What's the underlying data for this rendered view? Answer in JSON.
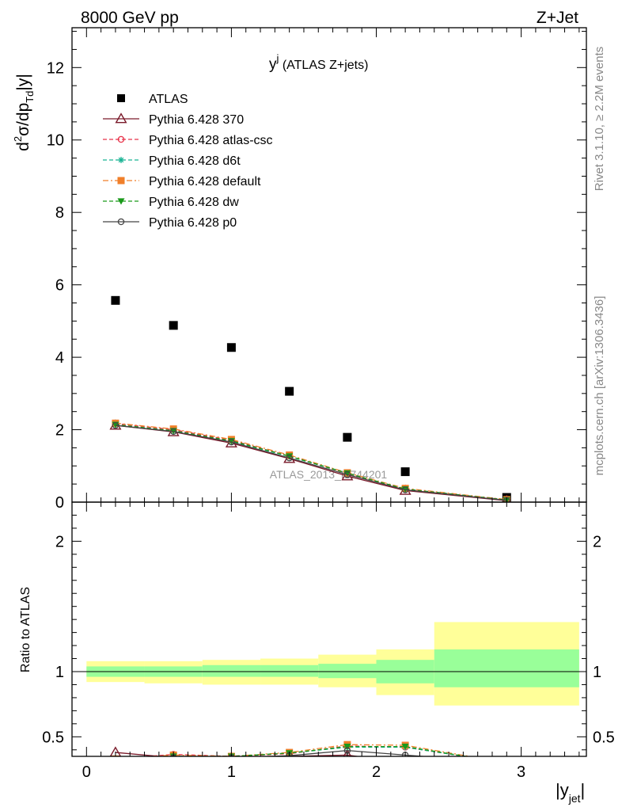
{
  "header": {
    "left_label": "8000 GeV pp",
    "right_label": "Z+Jet"
  },
  "side_labels": {
    "rivet": "Rivet 3.1.10, ≥ 2.2M events",
    "mcplots": "mcplots.cern.ch [arXiv:1306.3436]"
  },
  "watermark": "ATLAS_2013_I1744201",
  "chart_data": [
    {
      "type": "scatter",
      "panel": "main",
      "title_main": "y",
      "title_sup": "j",
      "title_rest": " (ATLAS Z+jets)",
      "ylabel": "d²σ/dp_Td|y|",
      "ylabel_parts": {
        "pre": "d",
        "sup": "2",
        "mid": "σ/dp",
        "sub": "Td",
        "post": "|y|"
      },
      "xlim": [
        -0.1,
        3.45
      ],
      "ylim": [
        0,
        13.1
      ],
      "yticks": [
        0,
        2,
        4,
        6,
        8,
        10,
        12
      ],
      "ytick_labels": [
        "0",
        "2",
        "4",
        "6",
        "8",
        "10",
        "12"
      ],
      "legend_position": "top-left",
      "x": [
        0.2,
        0.6,
        1.0,
        1.4,
        1.8,
        2.2,
        2.9
      ],
      "series": [
        {
          "name": "ATLAS",
          "color": "#000000",
          "marker": "square",
          "line": "none",
          "values": [
            5.57,
            4.88,
            4.27,
            3.06,
            1.79,
            0.84,
            0.13
          ]
        },
        {
          "name": "Pythia 6.428 370",
          "color": "#7a1a2a",
          "marker": "triangle-open",
          "line": "solid",
          "values": [
            2.12,
            1.94,
            1.63,
            1.2,
            0.72,
            0.32,
            0.04
          ]
        },
        {
          "name": "Pythia 6.428 atlas-csc",
          "color": "#e8334a",
          "marker": "circle-open",
          "line": "dashed",
          "values": [
            2.17,
            2.0,
            1.71,
            1.27,
            0.79,
            0.36,
            0.06
          ]
        },
        {
          "name": "Pythia 6.428 d6t",
          "color": "#19b394",
          "marker": "asterisk",
          "line": "dashed",
          "values": [
            2.14,
            1.97,
            1.68,
            1.26,
            0.8,
            0.36,
            0.06
          ]
        },
        {
          "name": "Pythia 6.428 default",
          "color": "#f07f2a",
          "marker": "square",
          "line": "dashdot",
          "values": [
            2.18,
            2.02,
            1.73,
            1.3,
            0.81,
            0.38,
            0.07
          ]
        },
        {
          "name": "Pythia 6.428 dw",
          "color": "#1a9a1a",
          "marker": "triangle-down",
          "line": "dashed",
          "values": [
            2.14,
            1.97,
            1.69,
            1.27,
            0.8,
            0.36,
            0.06
          ]
        },
        {
          "name": "Pythia 6.428 p0",
          "color": "#444444",
          "marker": "circle-open",
          "line": "solid",
          "values": [
            2.12,
            1.95,
            1.66,
            1.22,
            0.76,
            0.34,
            0.05
          ]
        }
      ]
    },
    {
      "type": "line",
      "panel": "ratio",
      "ylabel": "Ratio to ATLAS",
      "xlabel": "|y",
      "xlabel_sub": "jet",
      "xlabel_post": "|",
      "xlim": [
        -0.1,
        3.45
      ],
      "ylim": [
        0.35,
        2.3
      ],
      "yticks": [
        0.5,
        1,
        2
      ],
      "ytick_labels": [
        "0.5",
        "1",
        "2"
      ],
      "xticks": [
        0,
        1,
        2,
        3
      ],
      "xtick_labels": [
        "0",
        "1",
        "2",
        "3"
      ],
      "reference_line": 1,
      "bands": [
        {
          "x0": 0.0,
          "x1": 0.4,
          "inner": [
            0.96,
            1.04
          ],
          "outer": [
            0.92,
            1.08
          ]
        },
        {
          "x0": 0.4,
          "x1": 0.8,
          "inner": [
            0.96,
            1.04
          ],
          "outer": [
            0.91,
            1.08
          ]
        },
        {
          "x0": 0.8,
          "x1": 1.2,
          "inner": [
            0.96,
            1.05
          ],
          "outer": [
            0.9,
            1.09
          ]
        },
        {
          "x0": 1.2,
          "x1": 1.6,
          "inner": [
            0.96,
            1.05
          ],
          "outer": [
            0.9,
            1.1
          ]
        },
        {
          "x0": 1.6,
          "x1": 2.0,
          "inner": [
            0.95,
            1.06
          ],
          "outer": [
            0.88,
            1.13
          ]
        },
        {
          "x0": 2.0,
          "x1": 2.4,
          "inner": [
            0.91,
            1.09
          ],
          "outer": [
            0.82,
            1.17
          ]
        },
        {
          "x0": 2.4,
          "x1": 3.4,
          "inner": [
            0.88,
            1.17
          ],
          "outer": [
            0.74,
            1.38
          ]
        }
      ],
      "x": [
        0.2,
        0.6,
        1.0,
        1.4,
        1.8,
        2.2,
        2.9
      ],
      "series": [
        {
          "name": "Pythia 6.428 370",
          "color": "#7a1a2a",
          "marker": "triangle-open",
          "line": "solid",
          "values": [
            0.38,
            0.34,
            0.34,
            0.35,
            0.36,
            0.3,
            0.3
          ]
        },
        {
          "name": "Pythia 6.428 atlas-csc",
          "color": "#e8334a",
          "marker": "circle-open",
          "line": "dashed",
          "values": [
            0.33,
            0.365,
            0.35,
            0.37,
            0.43,
            0.42,
            0.3
          ]
        },
        {
          "name": "Pythia 6.428 d6t",
          "color": "#19b394",
          "marker": "asterisk",
          "line": "dashed",
          "values": [
            0.33,
            0.35,
            0.35,
            0.375,
            0.42,
            0.42,
            0.3
          ]
        },
        {
          "name": "Pythia 6.428 default",
          "color": "#f07f2a",
          "marker": "square",
          "line": "dashdot",
          "values": [
            0.33,
            0.36,
            0.35,
            0.38,
            0.44,
            0.435,
            0.3
          ]
        },
        {
          "name": "Pythia 6.428 dw",
          "color": "#1a9a1a",
          "marker": "triangle-down",
          "line": "dashed",
          "values": [
            0.33,
            0.35,
            0.35,
            0.375,
            0.425,
            0.425,
            0.3
          ]
        },
        {
          "name": "Pythia 6.428 p0",
          "color": "#444444",
          "marker": "circle-open",
          "line": "solid",
          "values": [
            0.32,
            0.34,
            0.34,
            0.355,
            0.395,
            0.36,
            0.3
          ]
        }
      ]
    }
  ]
}
